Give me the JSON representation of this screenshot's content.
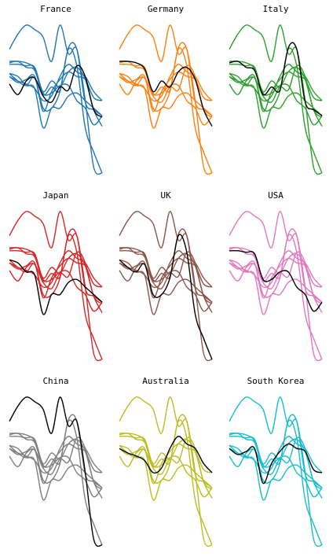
{
  "chart_data": {
    "type": "small-multiples-line",
    "highlight_color": "#000000",
    "ylim": [
      0,
      100
    ],
    "series": [
      {
        "name": "France",
        "color": "#1f77b4",
        "values": [
          60,
          53,
          62,
          64,
          52,
          48,
          58,
          56,
          72,
          65,
          43,
          38
        ]
      },
      {
        "name": "Germany",
        "color": "#ff7f0e",
        "values": [
          75,
          75,
          74,
          70,
          55,
          62,
          58,
          68,
          71,
          63,
          43,
          32
        ]
      },
      {
        "name": "Italy",
        "color": "#2ca02c",
        "values": [
          74,
          75,
          71,
          69,
          53,
          58,
          56,
          84,
          83,
          48,
          43,
          39
        ]
      },
      {
        "name": "Japan",
        "color": "#d62728",
        "values": [
          67,
          65,
          59,
          57,
          31,
          44,
          44,
          52,
          54,
          49,
          44,
          39
        ]
      },
      {
        "name": "UK",
        "color": "#8c564b",
        "values": [
          67,
          62,
          59,
          64,
          44,
          44,
          55,
          83,
          72,
          31,
          15,
          1
        ]
      },
      {
        "name": "USA",
        "color": "#e377c2",
        "values": [
          73,
          73,
          72,
          71,
          54,
          54,
          59,
          59,
          49,
          44,
          33,
          39
        ]
      },
      {
        "name": "China",
        "color": "#7f7f7f",
        "values": [
          83,
          93,
          99,
          96,
          91,
          75,
          99,
          80,
          83,
          49,
          5,
          1
        ]
      },
      {
        "name": "Australia",
        "color": "#bcbd22",
        "values": [
          65,
          62,
          60,
          57,
          49,
          52,
          65,
          73,
          68,
          65,
          55,
          49
        ]
      },
      {
        "name": "South Korea",
        "color": "#17becf",
        "values": [
          65,
          61,
          63,
          65,
          42,
          55,
          63,
          68,
          65,
          63,
          51,
          49
        ]
      }
    ]
  }
}
